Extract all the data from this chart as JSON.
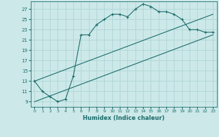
{
  "xlabel": "Humidex (Indice chaleur)",
  "bg_color": "#cce8e8",
  "grid_color": "#afd4d4",
  "line_color": "#1a6b6b",
  "xlim": [
    -0.5,
    23.5
  ],
  "ylim": [
    8,
    28.5
  ],
  "yticks": [
    9,
    11,
    13,
    15,
    17,
    19,
    21,
    23,
    25,
    27
  ],
  "xticks": [
    0,
    1,
    2,
    3,
    4,
    5,
    6,
    7,
    8,
    9,
    10,
    11,
    12,
    13,
    14,
    15,
    16,
    17,
    18,
    19,
    20,
    21,
    22,
    23
  ],
  "line1_x": [
    0,
    1,
    2,
    3,
    4,
    5,
    6,
    7,
    8,
    9,
    10,
    11,
    12,
    13,
    14,
    15,
    16,
    17,
    18,
    19,
    20,
    21,
    22,
    23
  ],
  "line1_y": [
    13,
    11,
    10,
    9,
    9.5,
    14,
    22,
    22,
    24,
    25,
    26,
    26,
    25.5,
    27,
    28,
    27.5,
    26.5,
    26.5,
    26,
    25,
    23,
    23,
    22.5,
    22.5
  ],
  "line2_x": [
    0,
    23
  ],
  "line2_y": [
    9,
    22
  ],
  "line3_x": [
    0,
    23
  ],
  "line3_y": [
    13,
    26
  ]
}
